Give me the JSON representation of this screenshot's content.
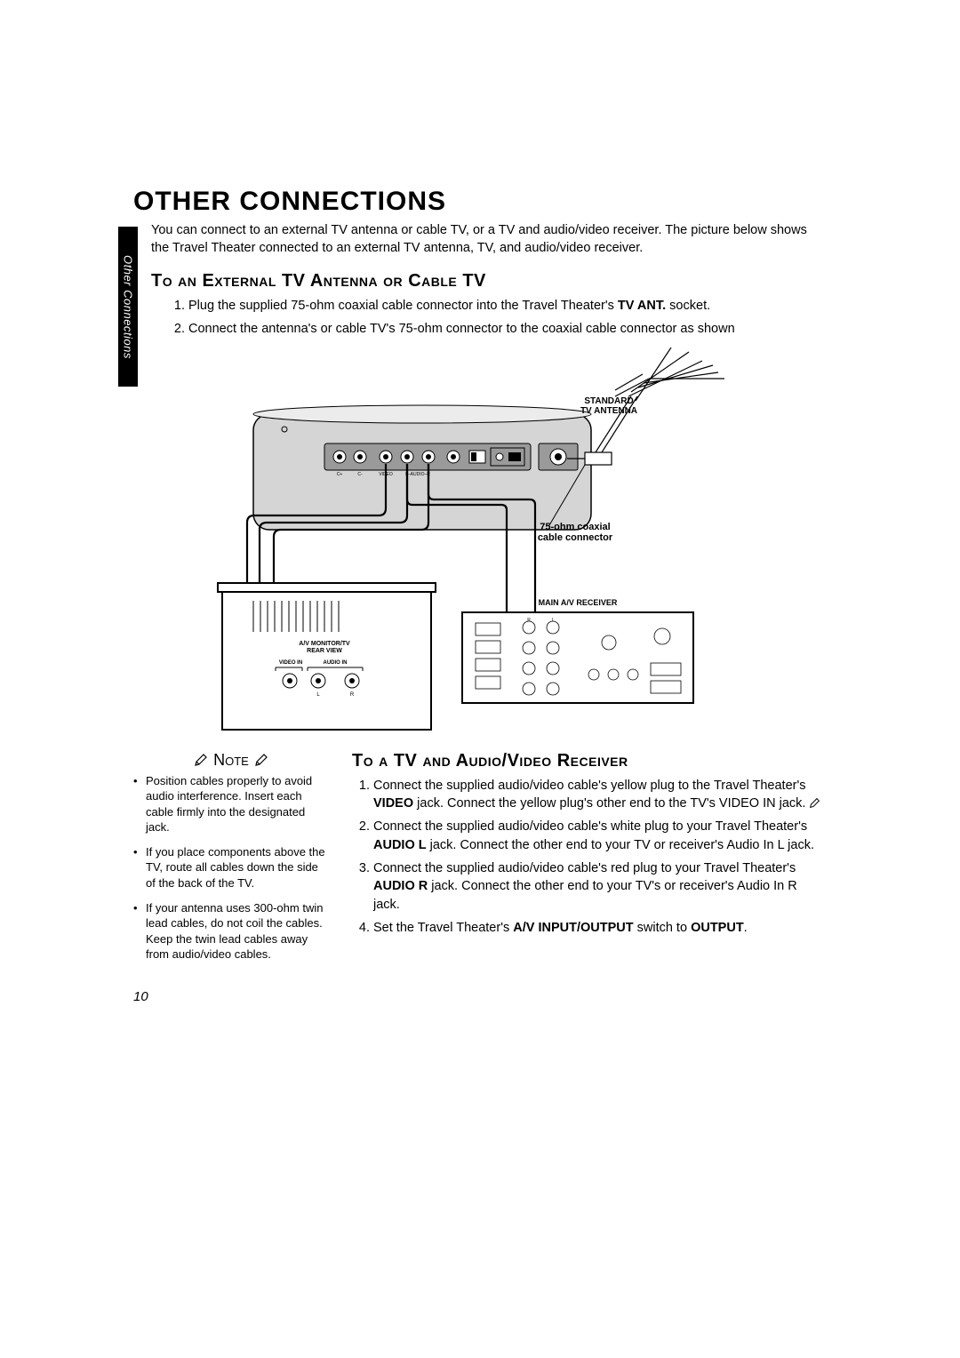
{
  "side_tab": "Other Connections",
  "title": "OTHER CONNECTIONS",
  "intro": "You can connect to an external TV antenna or cable TV, or a TV and audio/video receiver. The picture below shows the Travel Theater connected to an external TV antenna, TV, and audio/video receiver.",
  "sec1_head": "To an External TV Antenna or Cable TV",
  "sec1_steps": {
    "0": {
      "pre": "Plug the supplied 75-ohm coaxial cable connector into the Travel Theater's ",
      "bold": "TV ANT.",
      "post": " socket."
    },
    "1": {
      "pre": "Connect the antenna's or cable TV's 75-ohm connector to the coaxial cable connector as shown",
      "bold": "",
      "post": ""
    }
  },
  "note_label": "Note",
  "notes": {
    "0": "Position cables properly to avoid audio interference. Insert each cable firmly into the designated jack.",
    "1": "If you place components above the TV, route all cables down the side of the back of the TV.",
    "2": "If your antenna uses 300-ohm twin lead cables, do not coil the cables. Keep the twin lead cables away from audio/video cables."
  },
  "sec2_head": "To a TV and Audio/Video Receiver",
  "sec2_steps": {
    "0": {
      "a": "Connect the supplied audio/video cable's yellow plug to the Travel Theater's ",
      "b": "VIDEO",
      "c": " jack. Connect the yellow plug's other end to the TV's VIDEO IN jack. "
    },
    "1": {
      "a": "Connect the supplied audio/video cable's white plug to your Travel Theater's ",
      "b": "AUDIO L",
      "c": " jack. Connect the other end to your TV or receiver's Audio In L jack."
    },
    "2": {
      "a": "Connect the supplied audio/video cable's red plug to your Travel Theater's ",
      "b": "AUDIO R",
      "c": " jack. Connect the other end to your TV's or receiver's Audio In R jack."
    },
    "3": {
      "a": "Set the Travel Theater's ",
      "b": "A/V INPUT/OUTPUT",
      "c": " switch to ",
      "d": "OUTPUT",
      "e": "."
    }
  },
  "diagram_labels": {
    "antenna": "STANDARD\nTV ANTENNA",
    "coax": "75-ohm coaxial\ncable connector",
    "receiver": "MAIN A/V RECEIVER",
    "monitor": "A/V MONITOR/TV\nREAR VIEW",
    "video_in": "VIDEO IN",
    "audio_in": "AUDIO IN"
  },
  "page_number": "10",
  "colors": {
    "black": "#000000",
    "white": "#ffffff",
    "gray_body": "#d5d5d5",
    "gray_dark": "#9a9a9a",
    "gray_light": "#ececec"
  }
}
